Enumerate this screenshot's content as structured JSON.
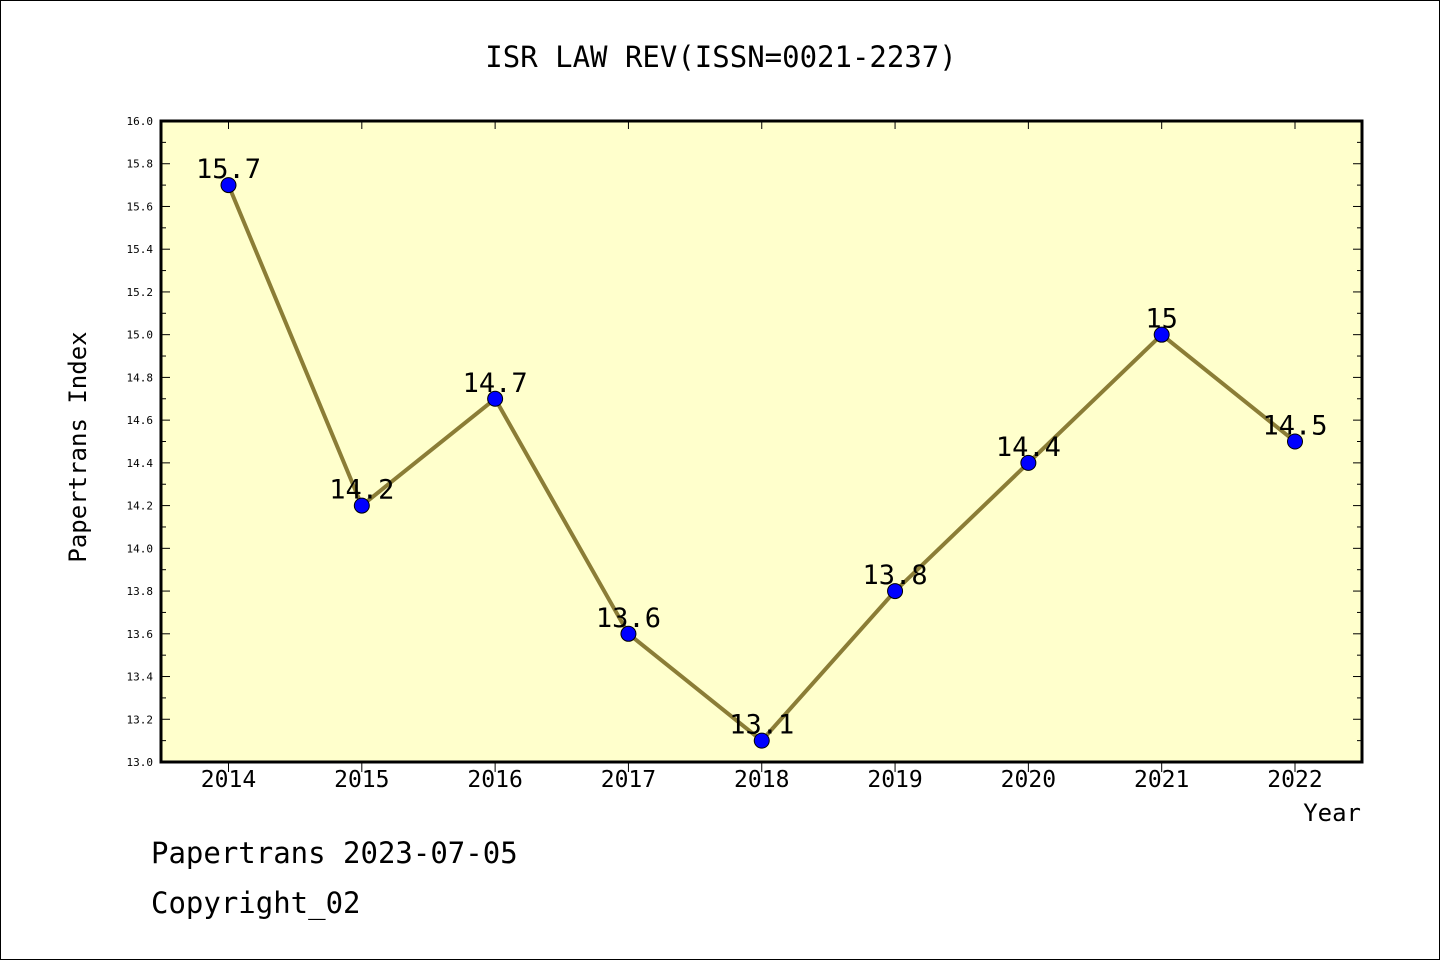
{
  "chart_data": {
    "type": "line",
    "title": "ISR LAW REV(ISSN=0021-2237)",
    "xlabel": "Year",
    "ylabel": "Papertrans Index",
    "categories": [
      "2014",
      "2015",
      "2016",
      "2017",
      "2018",
      "2019",
      "2020",
      "2021",
      "2022"
    ],
    "values": [
      15.7,
      14.2,
      14.7,
      13.6,
      13.1,
      13.8,
      14.4,
      15.0,
      14.5
    ],
    "data_labels": [
      "15.7",
      "14.2",
      "14.7",
      "13.6",
      "13.1",
      "13.8",
      "14.4",
      "15",
      "14.5"
    ],
    "ylim": [
      13.0,
      16.0
    ],
    "yticks": [
      "13.0",
      "13.2",
      "13.4",
      "13.6",
      "13.8",
      "14.0",
      "14.2",
      "14.4",
      "14.6",
      "14.8",
      "15.0",
      "15.2",
      "15.4",
      "15.6",
      "15.8",
      "16.0"
    ],
    "grid": false,
    "legend": "none",
    "colors": {
      "plot_background": "#ffffcc",
      "line": "#8b7d36",
      "marker": "#0000ff"
    }
  },
  "footer": {
    "date_line": "Papertrans 2023-07-05",
    "copyright_line": "Copyright_02"
  }
}
